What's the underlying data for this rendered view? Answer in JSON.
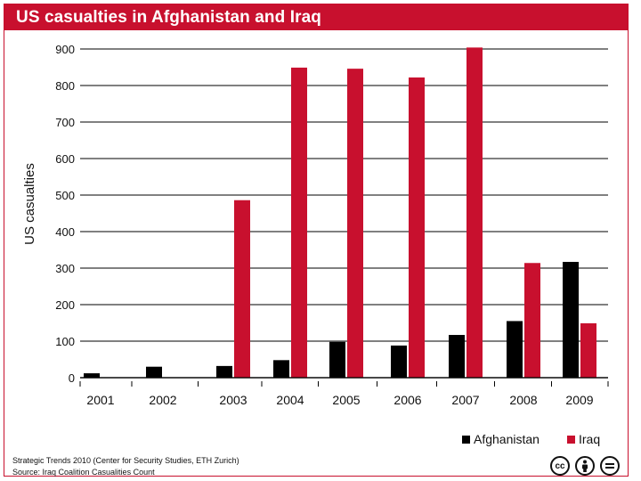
{
  "header": {
    "title": "US casualties in Afghanistan and Iraq"
  },
  "footer": {
    "source_line_1": "Strategic Trends 2010 (Center for Security Studies, ETH Zurich)",
    "source_line_2": "Source: Iraq Coalition Casualities Count",
    "license_icons": [
      "cc-icon",
      "attribution-icon",
      "no-derivatives-icon"
    ]
  },
  "colors": {
    "afghanistan": "#000000",
    "iraq": "#c8102e",
    "title_bar": "#c8102e"
  },
  "chart_data": {
    "type": "bar",
    "title": "US casualties in Afghanistan and Iraq",
    "xlabel": "",
    "ylabel": "US casualties",
    "ylim": [
      0,
      900
    ],
    "yticks": [
      0,
      100,
      200,
      300,
      400,
      500,
      600,
      700,
      800,
      900
    ],
    "grid": true,
    "legend_position": "bottom-right",
    "categories": [
      "2001",
      "2002",
      "2003",
      "2004",
      "2005",
      "2006",
      "2007",
      "2008",
      "2009"
    ],
    "series": [
      {
        "name": "Afghanistan",
        "color": "#000000",
        "values": [
          12,
          30,
          32,
          48,
          98,
          88,
          117,
          155,
          317
        ]
      },
      {
        "name": "Iraq",
        "color": "#c8102e",
        "values": [
          null,
          null,
          486,
          849,
          846,
          822,
          904,
          314,
          149
        ]
      }
    ]
  }
}
